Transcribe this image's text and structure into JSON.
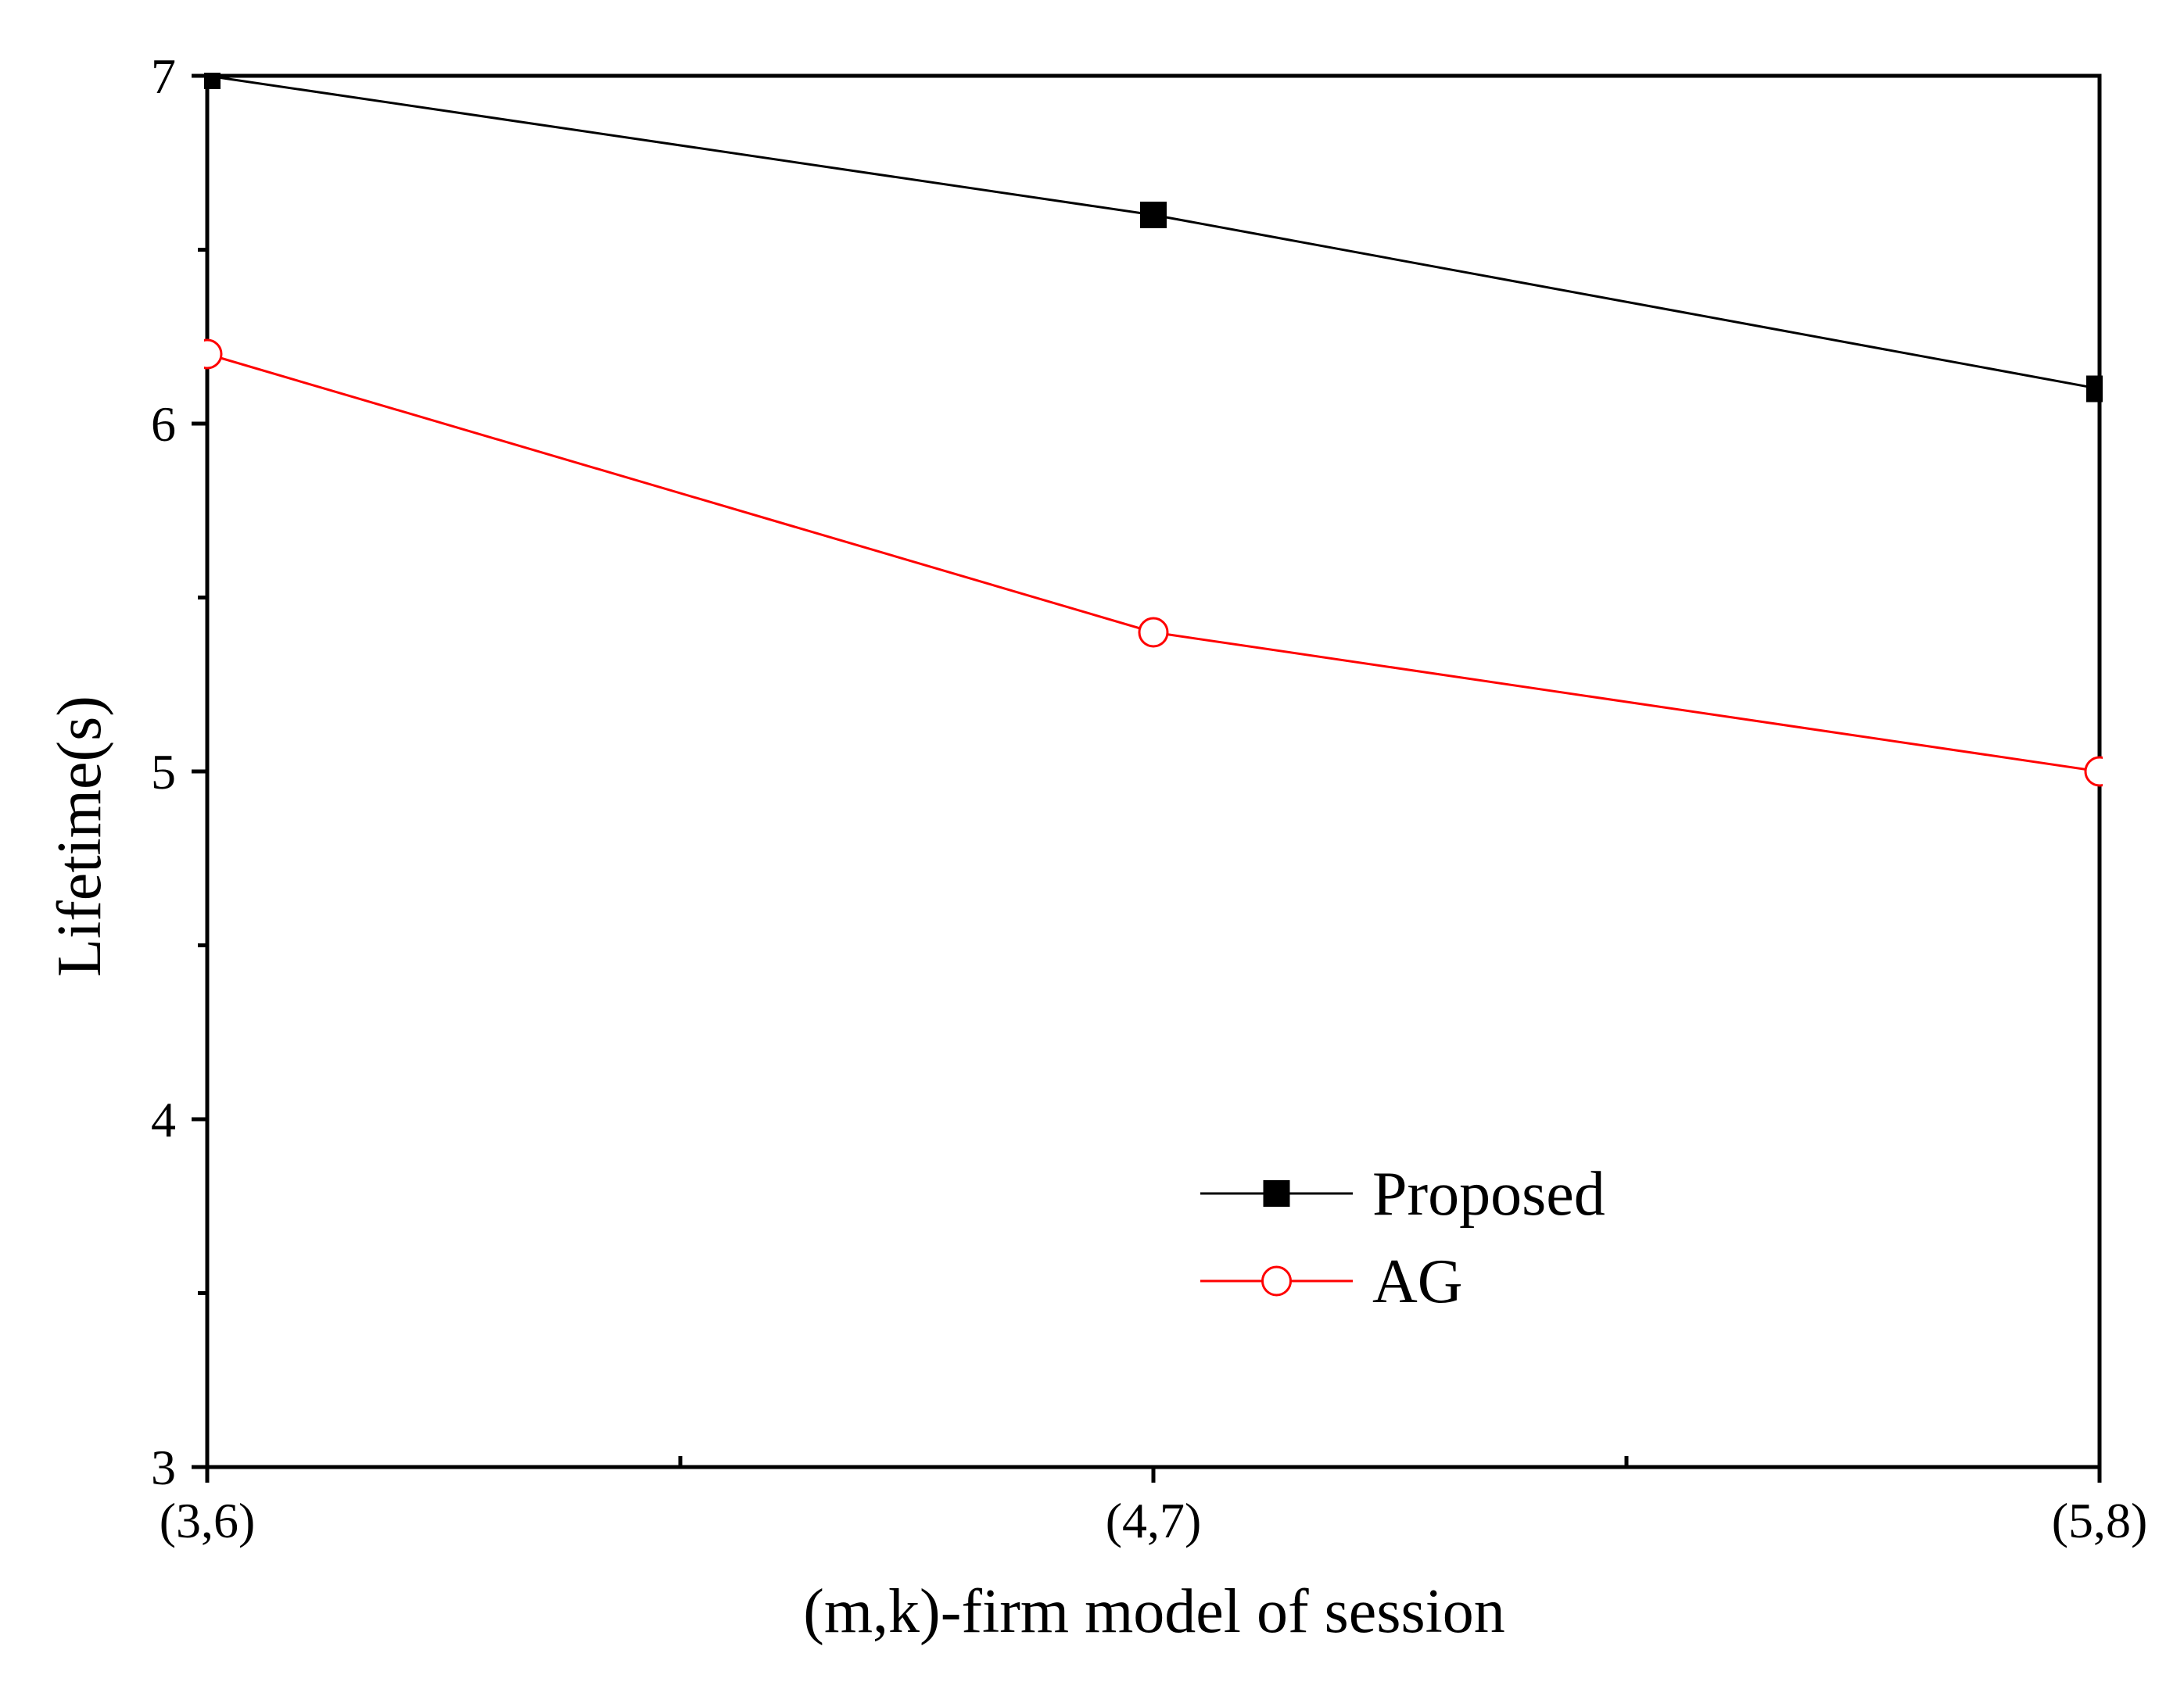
{
  "chart_data": {
    "type": "line",
    "title": "",
    "categories": [
      "(3,6)",
      "(4,7)",
      "(5,8)"
    ],
    "xlabel": "(m,k)-firm model of session",
    "ylabel": "Lifetime(s)",
    "ylim": [
      3,
      7
    ],
    "yticks": [
      3,
      4,
      5,
      6,
      7
    ],
    "grid": false,
    "legend_position": "lower-right",
    "series": [
      {
        "name": "Proposed",
        "values": [
          7.0,
          6.6,
          6.1
        ],
        "color": "#000000",
        "marker": "filled-square"
      },
      {
        "name": "AG",
        "values": [
          6.2,
          5.4,
          5.0
        ],
        "color": "#ff0000",
        "marker": "open-circle"
      }
    ]
  }
}
